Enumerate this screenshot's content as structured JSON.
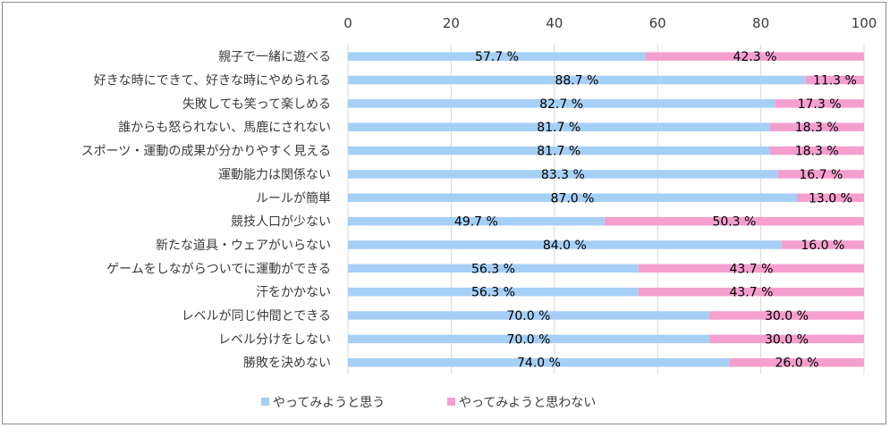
{
  "chart_data": {
    "type": "bar",
    "orientation": "horizontal",
    "stacked": true,
    "xlim": [
      0,
      100
    ],
    "xticks": [
      "0",
      "20",
      "40",
      "60",
      "80",
      "100"
    ],
    "gridlines": true,
    "legend_position": "bottom-left",
    "percent_suffix": " %",
    "categories": [
      "親子で一緒に遊べる",
      "好きな時にできて、好きな時にやめられる",
      "失敗しても笑って楽しめる",
      "誰からも怒られない、馬鹿にされない",
      "スポーツ・運動の成果が分かりやすく見える",
      "運動能力は関係ない",
      "ルールが簡単",
      "競技人口が少ない",
      "新たな道具・ウェアがいらない",
      "ゲームをしながらついでに運動ができる",
      "汗をかかない",
      "レベルが同じ仲間とできる",
      "レベル分けをしない",
      "勝敗を決めない"
    ],
    "series": [
      {
        "name": "やってみようと思う",
        "color": "#a6cff5",
        "values": [
          57.7,
          88.7,
          82.7,
          81.7,
          81.7,
          83.3,
          87.0,
          49.7,
          84.0,
          56.3,
          56.3,
          70.0,
          70.0,
          74.0
        ],
        "labels": [
          "57.7",
          "88.7",
          "82.7",
          "81.7",
          "81.7",
          "83.3",
          "87.0",
          "49.7",
          "84.0",
          "56.3",
          "56.3",
          "70.0",
          "70.0",
          "74.0"
        ]
      },
      {
        "name": "やってみようと思わない",
        "color": "#f59fcf",
        "values": [
          42.3,
          11.3,
          17.3,
          18.3,
          18.3,
          16.7,
          13.0,
          50.3,
          16.0,
          43.7,
          43.7,
          30.0,
          30.0,
          26.0
        ],
        "labels": [
          "42.3",
          "11.3",
          "17.3",
          "18.3",
          "18.3",
          "16.7",
          "13.0",
          "50.3",
          "16.0",
          "43.7",
          "43.7",
          "30.0",
          "30.0",
          "26.0"
        ]
      }
    ]
  }
}
